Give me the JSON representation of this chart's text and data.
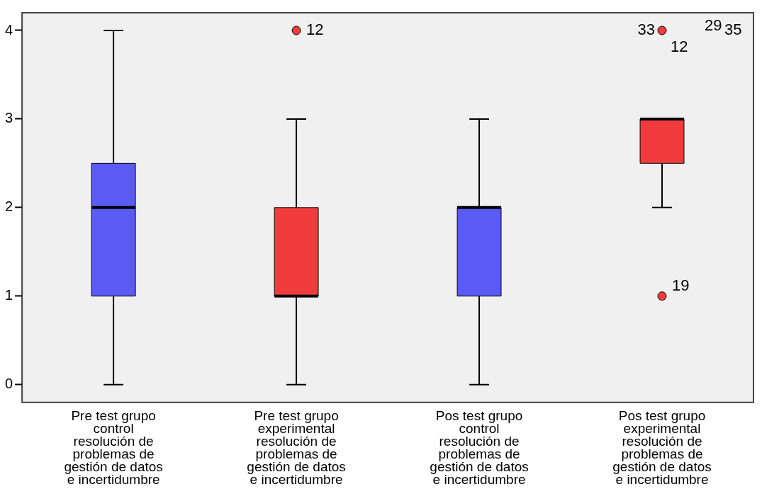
{
  "chart_data": {
    "type": "box",
    "categories": [
      "Pre test grupo\ncontrol\nresolución de\nproblemas de\ngestión de datos\ne incertidumbre",
      "Pre test grupo\nexperimental\nresolución de\nproblemas de\ngestión de datos\ne incertidumbre",
      "Pos test grupo\ncontrol\nresolución de\nproblemas de\ngestión de datos\ne incertidumbre",
      "Pos test grupo\nexperimental\nresolución de\nproblemas de\ngestión de datos\ne incertidumbre"
    ],
    "colors": [
      "#5a5af5",
      "#f03c3c",
      "#5a5af5",
      "#f03c3c"
    ],
    "boxes": [
      {
        "low": 0,
        "q1": 1,
        "median": 2,
        "q3": 2.5,
        "high": 4
      },
      {
        "low": 0,
        "q1": 1,
        "median": 1,
        "q3": 2,
        "high": 3,
        "outliers": [
          4
        ]
      },
      {
        "low": 0,
        "q1": 1,
        "median": 2,
        "q3": 2,
        "high": 3
      },
      {
        "low": 2,
        "q1": 2.5,
        "median": 3,
        "q3": 3,
        "high": 3,
        "outliers": [
          4,
          1
        ]
      }
    ],
    "ylim": [
      -0.2,
      4.2
    ],
    "yticks": [
      0,
      1,
      2,
      3,
      4
    ],
    "grid": false,
    "legend": false,
    "annotations": [
      "12",
      "33",
      "12",
      "29",
      "35",
      "19"
    ]
  }
}
